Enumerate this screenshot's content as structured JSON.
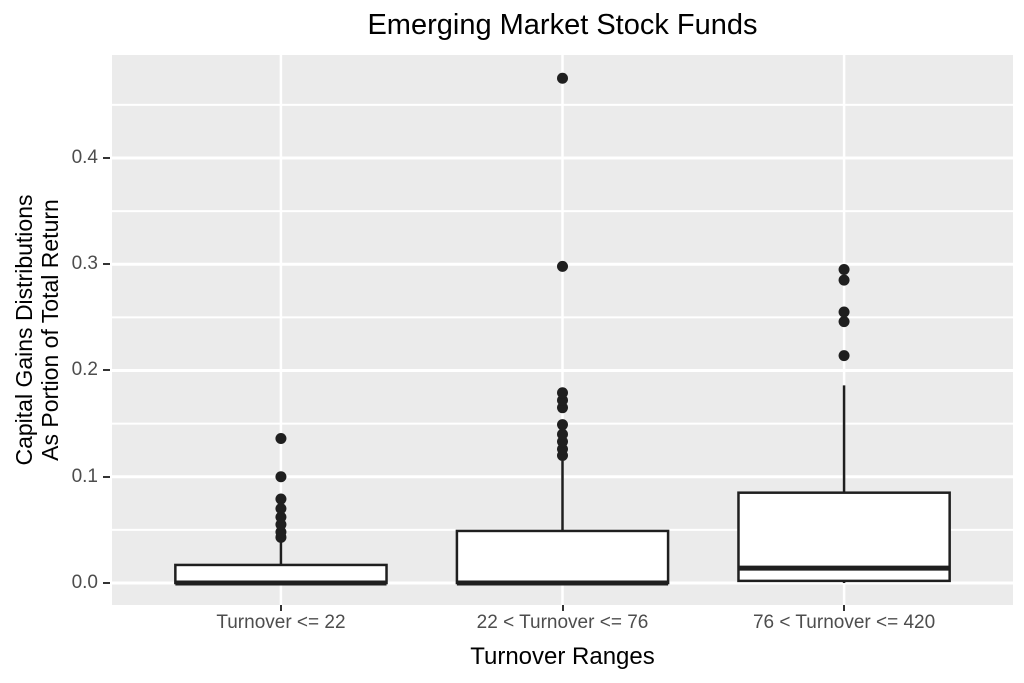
{
  "chart_data": {
    "type": "boxplot",
    "title": "Emerging Market Stock Funds",
    "xlabel": "Turnover Ranges",
    "ylabel_line1": "Capital Gains Distributions",
    "ylabel_line2": "As Portion of Total Return",
    "categories": [
      "Turnover <= 22",
      "22 < Turnover <= 76",
      "76 < Turnover <= 420"
    ],
    "ylim": [
      -0.0207,
      0.4969
    ],
    "y_ticks": [
      {
        "v": 0.0,
        "label": "0.0"
      },
      {
        "v": 0.1,
        "label": "0.1"
      },
      {
        "v": 0.2,
        "label": "0.2"
      },
      {
        "v": 0.3,
        "label": "0.3"
      },
      {
        "v": 0.4,
        "label": "0.4"
      }
    ],
    "y_minor_gridlines": [
      0.05,
      0.15,
      0.25,
      0.35,
      0.45
    ],
    "legend": "none",
    "gridlines": "horizontal major+minor, vertical at category centers",
    "boxes": [
      {
        "category": "Turnover <= 22",
        "whisker_low": 0.0,
        "q1": 0.0,
        "median": 0.0,
        "q3": 0.017,
        "whisker_high": 0.041,
        "outliers": [
          0.043,
          0.048,
          0.055,
          0.062,
          0.07,
          0.079,
          0.1,
          0.136
        ]
      },
      {
        "category": "22 < Turnover <= 76",
        "whisker_low": 0.0,
        "q1": 0.0,
        "median": 0.0,
        "q3": 0.049,
        "whisker_high": 0.115,
        "outliers": [
          0.12,
          0.126,
          0.133,
          0.14,
          0.149,
          0.165,
          0.172,
          0.179,
          0.298,
          0.475
        ]
      },
      {
        "category": "76 < Turnover <= 420",
        "whisker_low": 0.0,
        "q1": 0.002,
        "median": 0.014,
        "q3": 0.085,
        "whisker_high": 0.186,
        "outliers": [
          0.214,
          0.246,
          0.255,
          0.285,
          0.295
        ]
      }
    ],
    "colors": {
      "panel_bg": "#EBEBEB",
      "grid": "#FFFFFF",
      "box_fill": "#FFFFFF",
      "stroke": "#1F1F1F",
      "point": "#1F1F1F",
      "tick_label": "#4D4D4D",
      "title": "#000000",
      "tick_mark": "#333333"
    }
  }
}
